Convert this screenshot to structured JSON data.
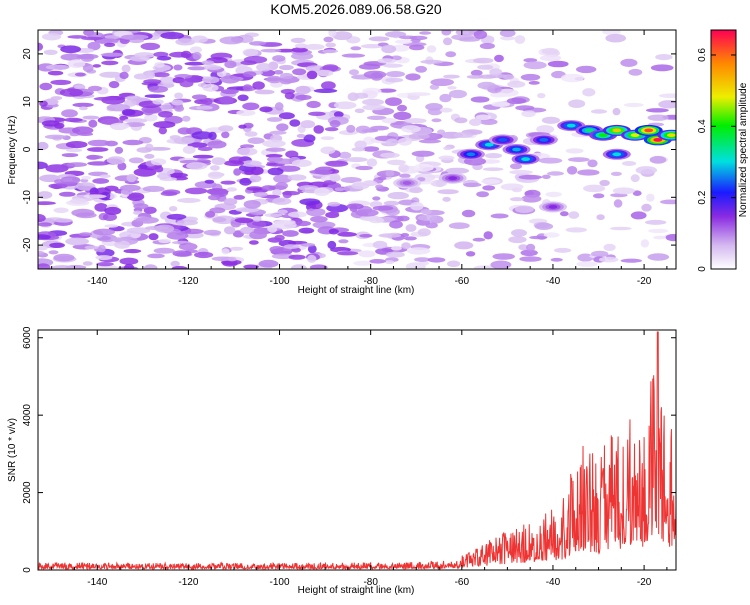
{
  "title": "KOM5.2026.089.06.58.G20",
  "colors": {
    "snr_line": "#ee3333",
    "axis": "#000000"
  },
  "chart_data": [
    {
      "type": "heatmap",
      "xlabel": "Height of straight line (km)",
      "ylabel": "Frequency (Hz)",
      "xlim": [
        -153,
        -13
      ],
      "ylim": [
        -25,
        25
      ],
      "x_ticks": [
        -140,
        -120,
        -100,
        -80,
        -60,
        -40,
        -20
      ],
      "y_ticks": [
        -20,
        -10,
        0,
        10,
        20
      ],
      "colorbar": {
        "label": "Normalized spectral amplitude",
        "range": [
          0,
          0.67
        ],
        "ticks": [
          0,
          0.2,
          0.4,
          0.6
        ]
      },
      "hotspots": [
        {
          "x": -58,
          "y": -1,
          "value": 0.26
        },
        {
          "x": -54,
          "y": 1,
          "value": 0.3
        },
        {
          "x": -51,
          "y": 2,
          "value": 0.24
        },
        {
          "x": -48,
          "y": 0,
          "value": 0.28
        },
        {
          "x": -46,
          "y": -2,
          "value": 0.3
        },
        {
          "x": -42,
          "y": 2,
          "value": 0.25
        },
        {
          "x": -36,
          "y": 5,
          "value": 0.3
        },
        {
          "x": -32,
          "y": 4,
          "value": 0.35
        },
        {
          "x": -29,
          "y": 3,
          "value": 0.4
        },
        {
          "x": -26,
          "y": 4,
          "value": 0.52
        },
        {
          "x": -22,
          "y": 3,
          "value": 0.48
        },
        {
          "x": -19,
          "y": 4,
          "value": 0.62
        },
        {
          "x": -17,
          "y": 2,
          "value": 0.66
        },
        {
          "x": -14,
          "y": 3,
          "value": 0.5
        },
        {
          "x": -26,
          "y": -1,
          "value": 0.3
        },
        {
          "x": -40,
          "y": -12,
          "value": 0.15
        },
        {
          "x": -62,
          "y": -6,
          "value": 0.15
        },
        {
          "x": -72,
          "y": -7,
          "value": 0.12
        }
      ]
    },
    {
      "type": "line",
      "xlabel": "Height of straight line (km)",
      "ylabel": "SNR (10 * v/v)",
      "xlim": [
        -153,
        -13
      ],
      "ylim": [
        0,
        6200
      ],
      "x_ticks": [
        -140,
        -120,
        -100,
        -80,
        -60,
        -40,
        -20
      ],
      "y_ticks": [
        0,
        2000,
        4000,
        6000
      ],
      "envelope": [
        {
          "x": -153,
          "y": 200
        },
        {
          "x": -120,
          "y": 180
        },
        {
          "x": -90,
          "y": 180
        },
        {
          "x": -70,
          "y": 220
        },
        {
          "x": -62,
          "y": 260
        },
        {
          "x": -58,
          "y": 500
        },
        {
          "x": -52,
          "y": 900
        },
        {
          "x": -46,
          "y": 1300
        },
        {
          "x": -42,
          "y": 1500
        },
        {
          "x": -38,
          "y": 1800
        },
        {
          "x": -35,
          "y": 3000
        },
        {
          "x": -33,
          "y": 3300
        },
        {
          "x": -30,
          "y": 2800
        },
        {
          "x": -27,
          "y": 3900
        },
        {
          "x": -25,
          "y": 3500
        },
        {
          "x": -22,
          "y": 4600
        },
        {
          "x": -20,
          "y": 3800
        },
        {
          "x": -17,
          "y": 6200
        },
        {
          "x": -15,
          "y": 3800
        },
        {
          "x": -13,
          "y": 4200
        }
      ],
      "peak": {
        "x": -17,
        "y": 6150
      }
    }
  ]
}
